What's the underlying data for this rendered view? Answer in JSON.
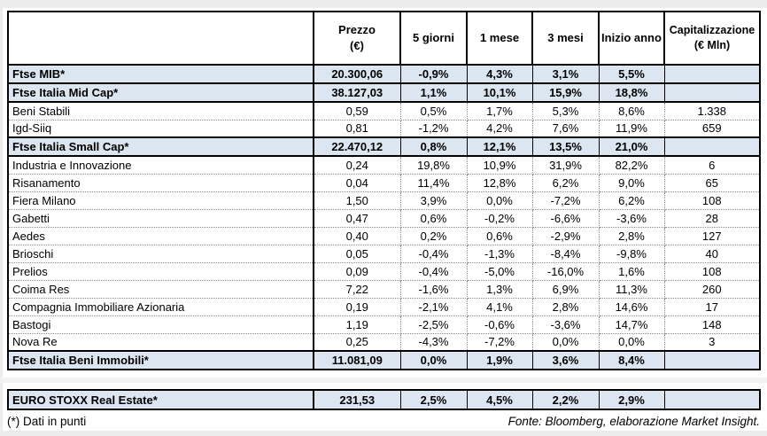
{
  "header": {
    "name": "",
    "prezzo_line1": "Prezzo",
    "prezzo_line2": "(€)",
    "g5": "5 giorni",
    "m1": "1 mese",
    "m3": "3 mesi",
    "anno": "Inizio anno",
    "cap_line1": "Capitalizzazione",
    "cap_line2": "(€ Mln)"
  },
  "main_table": {
    "rows": [
      {
        "type": "index",
        "name": "Ftse MIB*",
        "prezzo": "20.300,06",
        "g5": "-0,9%",
        "m1": "4,3%",
        "m3": "3,1%",
        "anno": "5,5%",
        "cap": ""
      },
      {
        "type": "index",
        "name": "Ftse Italia Mid Cap*",
        "prezzo": "38.127,03",
        "g5": "1,1%",
        "m1": "10,1%",
        "m3": "15,9%",
        "anno": "18,8%",
        "cap": ""
      },
      {
        "type": "stock",
        "name": "Beni Stabili",
        "prezzo": "0,59",
        "g5": "0,5%",
        "m1": "1,7%",
        "m3": "5,3%",
        "anno": "8,6%",
        "cap": "1.338"
      },
      {
        "type": "stock",
        "name": "Igd-Siiq",
        "prezzo": "0,81",
        "g5": "-1,2%",
        "m1": "4,2%",
        "m3": "7,6%",
        "anno": "11,9%",
        "cap": "659"
      },
      {
        "type": "index",
        "name": "Ftse Italia Small Cap*",
        "prezzo": "22.470,12",
        "g5": "0,8%",
        "m1": "12,1%",
        "m3": "13,5%",
        "anno": "21,0%",
        "cap": ""
      },
      {
        "type": "stock",
        "name": "Industria e Innovazione",
        "prezzo": "0,24",
        "g5": "19,8%",
        "m1": "10,9%",
        "m3": "31,9%",
        "anno": "82,2%",
        "cap": "6"
      },
      {
        "type": "stock",
        "name": "Risanamento",
        "prezzo": "0,04",
        "g5": "11,4%",
        "m1": "12,8%",
        "m3": "6,2%",
        "anno": "9,0%",
        "cap": "65"
      },
      {
        "type": "stock",
        "name": "Fiera Milano",
        "prezzo": "1,50",
        "g5": "3,9%",
        "m1": "0,0%",
        "m3": "-7,2%",
        "anno": "6,2%",
        "cap": "108"
      },
      {
        "type": "stock",
        "name": "Gabetti",
        "prezzo": "0,47",
        "g5": "0,6%",
        "m1": "-0,2%",
        "m3": "-6,6%",
        "anno": "-3,6%",
        "cap": "28"
      },
      {
        "type": "stock",
        "name": "Aedes",
        "prezzo": "0,40",
        "g5": "0,2%",
        "m1": "0,6%",
        "m3": "-2,9%",
        "anno": "2,8%",
        "cap": "127"
      },
      {
        "type": "stock",
        "name": "Brioschi",
        "prezzo": "0,05",
        "g5": "-0,4%",
        "m1": "-1,3%",
        "m3": "-8,4%",
        "anno": "-9,8%",
        "cap": "40"
      },
      {
        "type": "stock",
        "name": "Prelios",
        "prezzo": "0,09",
        "g5": "-0,4%",
        "m1": "-5,0%",
        "m3": "-16,0%",
        "anno": "1,6%",
        "cap": "108"
      },
      {
        "type": "stock",
        "name": "Coima Res",
        "prezzo": "7,22",
        "g5": "-1,6%",
        "m1": "1,3%",
        "m3": "6,9%",
        "anno": "11,3%",
        "cap": "260"
      },
      {
        "type": "stock",
        "name": "Compagnia Immobiliare Azionaria",
        "prezzo": "0,19",
        "g5": "-2,1%",
        "m1": "4,1%",
        "m3": "2,8%",
        "anno": "14,6%",
        "cap": "17"
      },
      {
        "type": "stock",
        "name": "Bastogi",
        "prezzo": "1,19",
        "g5": "-2,5%",
        "m1": "-0,6%",
        "m3": "-3,6%",
        "anno": "14,7%",
        "cap": "148"
      },
      {
        "type": "stock",
        "name": "Nova Re",
        "prezzo": "0,25",
        "g5": "-4,3%",
        "m1": "-7,2%",
        "m3": "0,0%",
        "anno": "0,0%",
        "cap": "3"
      },
      {
        "type": "index",
        "name": "Ftse Italia Beni Immobili*",
        "prezzo": "11.081,09",
        "g5": "0,0%",
        "m1": "1,9%",
        "m3": "3,6%",
        "anno": "8,4%",
        "cap": ""
      }
    ]
  },
  "euro_table": {
    "rows": [
      {
        "type": "index",
        "name": "EURO STOXX Real Estate*",
        "prezzo": "231,53",
        "g5": "2,5%",
        "m1": "4,5%",
        "m3": "2,2%",
        "anno": "2,9%",
        "cap": ""
      }
    ]
  },
  "footer": {
    "left": "(*) Dati in punti",
    "right": "Fonte: Bloomberg, elaborazione Market Insight."
  },
  "colors": {
    "index_row_bg": "#dce6f1",
    "border_black": "#000000",
    "dotted_gray": "#8f8f8f"
  }
}
